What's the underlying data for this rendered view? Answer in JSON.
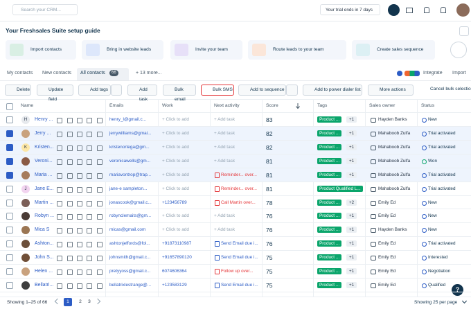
{
  "topbar": {
    "search_placeholder": "Search your CRM...",
    "trial": "Your trial ends in 7 days"
  },
  "guide": {
    "title": "Your Freshsales Suite setup guide",
    "steps": [
      "Import contacts",
      "Bring in website leads",
      "Invite your team",
      "Route leads to your team",
      "Create sales sequence"
    ]
  },
  "tabs": {
    "items": [
      "My contacts",
      "New contacts",
      "All contacts"
    ],
    "count": "66",
    "more": "+ 13 more...",
    "integrate": "Integrate",
    "import": "Import"
  },
  "toolbar": [
    "Delete",
    "Update field",
    "Add tags",
    "Add task",
    "Bulk email",
    "Bulk SMS",
    "Add to sequence",
    "Add to power dialer list",
    "More actions",
    "Cancel bulk selection"
  ],
  "table": {
    "columns": [
      "Name",
      "Emails",
      "Work",
      "Next activity",
      "Score",
      "Tags",
      "Sales owner",
      "Status"
    ],
    "rows": [
      {
        "initial": "H",
        "name": "Henry ...",
        "email": "henry_l@gmail.c...",
        "work": "+ Click to add",
        "activity": "+ Add task",
        "activity_style": "task",
        "score": 83,
        "tag": "Product ...",
        "tag_more": "+1",
        "owner": "Hayden Banks",
        "status": "New",
        "status_style": "info",
        "checked": false
      },
      {
        "name": "Jerry ...",
        "email": "jerrywilliams@gmai...",
        "work": "+ Click to add",
        "activity": "+ Add task",
        "activity_style": "task",
        "score": 82,
        "tag": "Product ...",
        "tag_more": "+1",
        "owner": "Mahaboob Zulfa",
        "status": "Trial activated",
        "status_style": "info",
        "checked": true
      },
      {
        "initial": "K",
        "name": "Kristen...",
        "email": "kristenortega@gm...",
        "work": "+ Click to add",
        "activity": "+ Add task",
        "activity_style": "task",
        "score": 82,
        "tag": "Product ...",
        "tag_more": "+1",
        "owner": "Mahaboob Zulfa",
        "status": "Trial activated",
        "status_style": "info",
        "checked": true
      },
      {
        "name": "Veroni...",
        "email": "veronicawells@gm...",
        "work": "+ Click to add",
        "activity": "+ Add task",
        "activity_style": "task",
        "score": 81,
        "tag": "Product ...",
        "tag_more": "+1",
        "owner": "Mahaboob Zulfa",
        "status": "Won",
        "status_style": "success",
        "checked": true
      },
      {
        "name": "Maria ...",
        "email": "mariavontrop@trap...",
        "work": "+ Click to add",
        "activity": "Reminder... over...",
        "activity_style": "alert",
        "score": 81,
        "tag": "Product ...",
        "tag_more": "+1",
        "owner": "Mahaboob Zulfa",
        "status": "Trial activated",
        "status_style": "info",
        "checked": true
      },
      {
        "initial": "J",
        "name": "Jane E...",
        "email": "jane-e sampleton...",
        "work": "+ Click to add",
        "activity": "Reminder... over...",
        "activity_style": "alert",
        "score": 81,
        "tag": "Product Qualified L...",
        "owner": "Mahaboob Zulfa",
        "status": "Trial activated",
        "status_style": "info",
        "checked": false
      },
      {
        "name": "Martin ...",
        "email": "jonascook@gmail.c...",
        "work": "+123456789",
        "activity": "Call Martin over...",
        "activity_style": "alert",
        "score": 78,
        "tag": "Product ...",
        "tag_more": "+2",
        "owner": "Emily Ed",
        "status": "New",
        "status_style": "info",
        "checked": false
      },
      {
        "name": "Robyn ...",
        "email": "robynclemaits@gm...",
        "work": "+ Click to add",
        "activity": "+ Add task",
        "activity_style": "task",
        "score": 76,
        "tag": "Product ...",
        "tag_more": "+1",
        "owner": "Emily Ed",
        "status": "New",
        "status_style": "info",
        "checked": false
      },
      {
        "name": "Mica S",
        "email": "micas@gmail.com",
        "work": "+ Click to add",
        "activity": "+ Add task",
        "activity_style": "task",
        "score": 76,
        "tag": "Product ...",
        "tag_more": "+1",
        "owner": "Hayden Banks",
        "status": "New",
        "status_style": "info",
        "checked": false
      },
      {
        "name": "Ashton...",
        "email": "ashtonjeffords@fol...",
        "work": "+91873110987",
        "activity": "Send Email due i...",
        "activity_style": "email",
        "score": 76,
        "tag": "Product ...",
        "tag_more": "+1",
        "owner": "Emily Ed",
        "status": "Trial activated",
        "status_style": "info",
        "checked": false
      },
      {
        "name": "John S...",
        "email": "johnsmith@gmail.c...",
        "work": "+91657890120",
        "activity": "Send Email due i...",
        "activity_style": "email",
        "score": 75,
        "tag": "Product ...",
        "tag_more": "+1",
        "owner": "Emily Ed",
        "status": "Interested",
        "status_style": "info",
        "checked": false
      },
      {
        "name": "Helen ...",
        "email": "pretyyoss@gmail.c...",
        "work": "6074606364",
        "activity": "Follow up over...",
        "activity_style": "alert",
        "score": 75,
        "tag": "Product ...",
        "tag_more": "+1",
        "owner": "Emily Ed",
        "status": "Negotiation",
        "status_style": "info",
        "checked": false
      },
      {
        "name": "Bellatri...",
        "email": "bellatrixlestrange@...",
        "work": "+123583129",
        "activity": "Send Email due i...",
        "activity_style": "email",
        "score": 75,
        "tag": "Product ...",
        "tag_more": "+1",
        "owner": "Emily Ed",
        "status": "Qualified",
        "status_style": "info",
        "checked": false
      }
    ]
  },
  "footer": {
    "showing": "Showing 1–25 of 66",
    "pages": [
      "1",
      "2",
      "3"
    ],
    "per_page": "Showing 25 per page",
    "help": "?"
  }
}
